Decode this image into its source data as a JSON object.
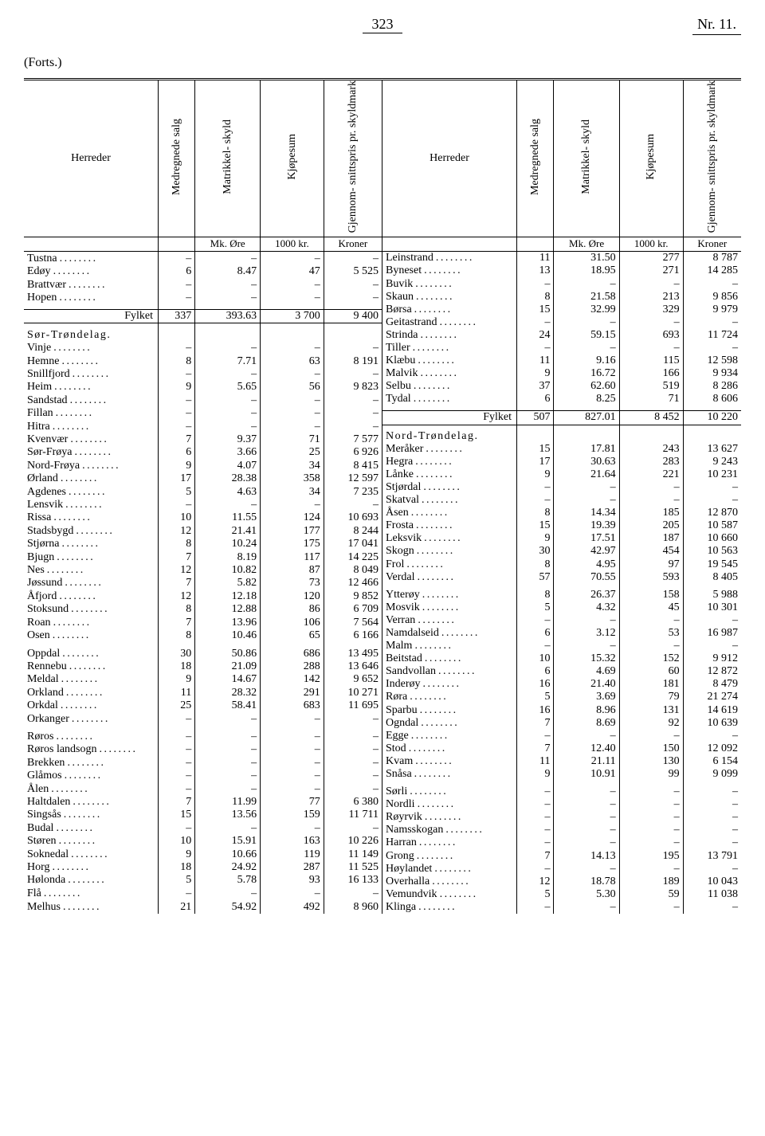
{
  "page": {
    "number": "323",
    "nr": "Nr. 11.",
    "forts": "(Forts.)"
  },
  "columns": {
    "herreder": "Herreder",
    "medregnede": "Medregnede\nsalg",
    "matrikkel": "Matrikkel-\nskyld",
    "kjopesum": "Kjøpesum",
    "gjennom": "Gjennom-\nsnittspris pr.\nskyldmark",
    "u1": "",
    "u2": "Mk. Øre",
    "u3": "1000 kr.",
    "u4": "Kroner"
  },
  "left": [
    {
      "n": "Tustna",
      "a": "–",
      "b": "–",
      "c": "–",
      "d": "–"
    },
    {
      "n": "Edøy",
      "a": "6",
      "b": "8.47",
      "c": "47",
      "d": "5 525"
    },
    {
      "n": "Brattvær",
      "a": "–",
      "b": "–",
      "c": "–",
      "d": "–"
    },
    {
      "n": "Hopen",
      "a": "–",
      "b": "–",
      "c": "–",
      "d": "–"
    },
    {
      "type": "spacer"
    },
    {
      "type": "total",
      "n": "Fylket",
      "a": "337",
      "b": "393.63",
      "c": "3 700",
      "d": "9 400"
    },
    {
      "type": "spacer"
    },
    {
      "type": "region",
      "n": "Sør-Trøndelag."
    },
    {
      "n": "Vinje",
      "a": "–",
      "b": "–",
      "c": "–",
      "d": "–"
    },
    {
      "n": "Hemne",
      "a": "8",
      "b": "7.71",
      "c": "63",
      "d": "8 191"
    },
    {
      "n": "Snillfjord",
      "a": "–",
      "b": "–",
      "c": "–",
      "d": "–"
    },
    {
      "n": "Heim",
      "a": "9",
      "b": "5.65",
      "c": "56",
      "d": "9 823"
    },
    {
      "n": "Sandstad",
      "a": "–",
      "b": "–",
      "c": "–",
      "d": "–"
    },
    {
      "n": "Fillan",
      "a": "–",
      "b": "–",
      "c": "–",
      "d": "–"
    },
    {
      "n": "Hitra",
      "a": "–",
      "b": "–",
      "c": "–",
      "d": "–"
    },
    {
      "n": "Kvenvær",
      "a": "7",
      "b": "9.37",
      "c": "71",
      "d": "7 577"
    },
    {
      "n": "Sør-Frøya",
      "a": "6",
      "b": "3.66",
      "c": "25",
      "d": "6 926"
    },
    {
      "n": "Nord-Frøya",
      "a": "9",
      "b": "4.07",
      "c": "34",
      "d": "8 415"
    },
    {
      "n": "Ørland",
      "a": "17",
      "b": "28.38",
      "c": "358",
      "d": "12 597"
    },
    {
      "n": "Agdenes",
      "a": "5",
      "b": "4.63",
      "c": "34",
      "d": "7 235"
    },
    {
      "n": "Lensvik",
      "a": "–",
      "b": "–",
      "c": "–",
      "d": "–"
    },
    {
      "n": "Rissa",
      "a": "10",
      "b": "11.55",
      "c": "124",
      "d": "10 693"
    },
    {
      "n": "Stadsbygd",
      "a": "12",
      "b": "21.41",
      "c": "177",
      "d": "8 244"
    },
    {
      "n": "Stjørna",
      "a": "8",
      "b": "10.24",
      "c": "175",
      "d": "17 041"
    },
    {
      "n": "Bjugn",
      "a": "7",
      "b": "8.19",
      "c": "117",
      "d": "14 225"
    },
    {
      "n": "Nes",
      "a": "12",
      "b": "10.82",
      "c": "87",
      "d": "8 049"
    },
    {
      "n": "Jøssund",
      "a": "7",
      "b": "5.82",
      "c": "73",
      "d": "12 466"
    },
    {
      "n": "Åfjord",
      "a": "12",
      "b": "12.18",
      "c": "120",
      "d": "9 852"
    },
    {
      "n": "Stoksund",
      "a": "8",
      "b": "12.88",
      "c": "86",
      "d": "6 709"
    },
    {
      "n": "Roan",
      "a": "7",
      "b": "13.96",
      "c": "106",
      "d": "7 564"
    },
    {
      "n": "Osen",
      "a": "8",
      "b": "10.46",
      "c": "65",
      "d": "6 166"
    },
    {
      "type": "spacer"
    },
    {
      "n": "Oppdal",
      "a": "30",
      "b": "50.86",
      "c": "686",
      "d": "13 495"
    },
    {
      "n": "Rennebu",
      "a": "18",
      "b": "21.09",
      "c": "288",
      "d": "13 646"
    },
    {
      "n": "Meldal",
      "a": "9",
      "b": "14.67",
      "c": "142",
      "d": "9 652"
    },
    {
      "n": "Orkland",
      "a": "11",
      "b": "28.32",
      "c": "291",
      "d": "10 271"
    },
    {
      "n": "Orkdal",
      "a": "25",
      "b": "58.41",
      "c": "683",
      "d": "11 695"
    },
    {
      "n": "Orkanger",
      "a": "–",
      "b": "–",
      "c": "–",
      "d": "–"
    },
    {
      "type": "spacer"
    },
    {
      "n": "Røros",
      "a": "–",
      "b": "–",
      "c": "–",
      "d": "–"
    },
    {
      "n": "Røros landsogn",
      "a": "–",
      "b": "–",
      "c": "–",
      "d": "–"
    },
    {
      "n": "Brekken",
      "a": "–",
      "b": "–",
      "c": "–",
      "d": "–"
    },
    {
      "n": "Glåmos",
      "a": "–",
      "b": "–",
      "c": "–",
      "d": "–"
    },
    {
      "n": "Ålen",
      "a": "–",
      "b": "–",
      "c": "–",
      "d": "–"
    },
    {
      "n": "Haltdalen",
      "a": "7",
      "b": "11.99",
      "c": "77",
      "d": "6 380"
    },
    {
      "n": "Singsås",
      "a": "15",
      "b": "13.56",
      "c": "159",
      "d": "11 711"
    },
    {
      "n": "Budal",
      "a": "–",
      "b": "–",
      "c": "–",
      "d": "–"
    },
    {
      "n": "Støren",
      "a": "10",
      "b": "15.91",
      "c": "163",
      "d": "10 226"
    },
    {
      "n": "Soknedal",
      "a": "9",
      "b": "10.66",
      "c": "119",
      "d": "11 149"
    },
    {
      "n": "Horg",
      "a": "18",
      "b": "24.92",
      "c": "287",
      "d": "11 525"
    },
    {
      "n": "Hølonda",
      "a": "5",
      "b": "5.78",
      "c": "93",
      "d": "16 133"
    },
    {
      "n": "Flå",
      "a": "–",
      "b": "–",
      "c": "–",
      "d": "–"
    },
    {
      "n": "Melhus",
      "a": "21",
      "b": "54.92",
      "c": "492",
      "d": "8 960"
    }
  ],
  "right": [
    {
      "n": "Leinstrand",
      "a": "11",
      "b": "31.50",
      "c": "277",
      "d": "8 787"
    },
    {
      "n": "Byneset",
      "a": "13",
      "b": "18.95",
      "c": "271",
      "d": "14 285"
    },
    {
      "n": "Buvik",
      "a": "–",
      "b": "–",
      "c": "–",
      "d": "–"
    },
    {
      "n": "Skaun",
      "a": "8",
      "b": "21.58",
      "c": "213",
      "d": "9 856"
    },
    {
      "n": "Børsa",
      "a": "15",
      "b": "32.99",
      "c": "329",
      "d": "9 979"
    },
    {
      "n": "Geitastrand",
      "a": "–",
      "b": "–",
      "c": "–",
      "d": "–"
    },
    {
      "n": "Strinda",
      "a": "24",
      "b": "59.15",
      "c": "693",
      "d": "11 724"
    },
    {
      "n": "Tiller",
      "a": "–",
      "b": "–",
      "c": "–",
      "d": "–"
    },
    {
      "n": "Klæbu",
      "a": "11",
      "b": "9.16",
      "c": "115",
      "d": "12 598"
    },
    {
      "n": "Malvik",
      "a": "9",
      "b": "16.72",
      "c": "166",
      "d": "9 934"
    },
    {
      "n": "Selbu",
      "a": "37",
      "b": "62.60",
      "c": "519",
      "d": "8 286"
    },
    {
      "n": "Tydal",
      "a": "6",
      "b": "8.25",
      "c": "71",
      "d": "8 606"
    },
    {
      "type": "spacer"
    },
    {
      "type": "total",
      "n": "Fylket",
      "a": "507",
      "b": "827.01",
      "c": "8 452",
      "d": "10 220"
    },
    {
      "type": "spacer"
    },
    {
      "type": "region",
      "n": "Nord-Trøndelag."
    },
    {
      "n": "Meråker",
      "a": "15",
      "b": "17.81",
      "c": "243",
      "d": "13 627"
    },
    {
      "n": "Hegra",
      "a": "17",
      "b": "30.63",
      "c": "283",
      "d": "9 243"
    },
    {
      "n": "Lånke",
      "a": "9",
      "b": "21.64",
      "c": "221",
      "d": "10 231"
    },
    {
      "n": "Stjørdal",
      "a": "–",
      "b": "–",
      "c": "–",
      "d": "–"
    },
    {
      "n": "Skatval",
      "a": "–",
      "b": "–",
      "c": "–",
      "d": "–"
    },
    {
      "n": "Åsen",
      "a": "8",
      "b": "14.34",
      "c": "185",
      "d": "12 870"
    },
    {
      "n": "Frosta",
      "a": "15",
      "b": "19.39",
      "c": "205",
      "d": "10 587"
    },
    {
      "n": "Leksvik",
      "a": "9",
      "b": "17.51",
      "c": "187",
      "d": "10 660"
    },
    {
      "n": "Skogn",
      "a": "30",
      "b": "42.97",
      "c": "454",
      "d": "10 563"
    },
    {
      "n": "Frol",
      "a": "8",
      "b": "4.95",
      "c": "97",
      "d": "19 545"
    },
    {
      "n": "Verdal",
      "a": "57",
      "b": "70.55",
      "c": "593",
      "d": "8 405"
    },
    {
      "type": "spacer"
    },
    {
      "n": "Ytterøy",
      "a": "8",
      "b": "26.37",
      "c": "158",
      "d": "5 988"
    },
    {
      "n": "Mosvik",
      "a": "5",
      "b": "4.32",
      "c": "45",
      "d": "10 301"
    },
    {
      "n": "Verran",
      "a": "–",
      "b": "–",
      "c": "–",
      "d": "–"
    },
    {
      "n": "Namdalseid",
      "a": "6",
      "b": "3.12",
      "c": "53",
      "d": "16 987"
    },
    {
      "n": "Malm",
      "a": "–",
      "b": "–",
      "c": "–",
      "d": "–"
    },
    {
      "n": "Beitstad",
      "a": "10",
      "b": "15.32",
      "c": "152",
      "d": "9 912"
    },
    {
      "n": "Sandvollan",
      "a": "6",
      "b": "4.69",
      "c": "60",
      "d": "12 872"
    },
    {
      "n": "Inderøy",
      "a": "16",
      "b": "21.40",
      "c": "181",
      "d": "8 479"
    },
    {
      "n": "Røra",
      "a": "5",
      "b": "3.69",
      "c": "79",
      "d": "21 274"
    },
    {
      "n": "Sparbu",
      "a": "16",
      "b": "8.96",
      "c": "131",
      "d": "14 619"
    },
    {
      "n": "Ogndal",
      "a": "7",
      "b": "8.69",
      "c": "92",
      "d": "10 639"
    },
    {
      "n": "Egge",
      "a": "–",
      "b": "–",
      "c": "–",
      "d": "–"
    },
    {
      "n": "Stod",
      "a": "7",
      "b": "12.40",
      "c": "150",
      "d": "12 092"
    },
    {
      "n": "Kvam",
      "a": "11",
      "b": "21.11",
      "c": "130",
      "d": "6 154"
    },
    {
      "n": "Snåsa",
      "a": "9",
      "b": "10.91",
      "c": "99",
      "d": "9 099"
    },
    {
      "type": "spacer"
    },
    {
      "n": "Sørli",
      "a": "–",
      "b": "–",
      "c": "–",
      "d": "–"
    },
    {
      "n": "Nordli",
      "a": "–",
      "b": "–",
      "c": "–",
      "d": "–"
    },
    {
      "n": "Røyrvik",
      "a": "–",
      "b": "–",
      "c": "–",
      "d": "–"
    },
    {
      "n": "Namsskogan",
      "a": "–",
      "b": "–",
      "c": "–",
      "d": "–"
    },
    {
      "n": "Harran",
      "a": "–",
      "b": "–",
      "c": "–",
      "d": "–"
    },
    {
      "n": "Grong",
      "a": "7",
      "b": "14.13",
      "c": "195",
      "d": "13 791"
    },
    {
      "n": "Høylandet",
      "a": "–",
      "b": "–",
      "c": "–",
      "d": "–"
    },
    {
      "n": "Overhalla",
      "a": "12",
      "b": "18.78",
      "c": "189",
      "d": "10 043"
    },
    {
      "n": "Vemundvik",
      "a": "5",
      "b": "5.30",
      "c": "59",
      "d": "11 038"
    },
    {
      "n": "Klinga",
      "a": "–",
      "b": "–",
      "c": "–",
      "d": "–"
    }
  ]
}
